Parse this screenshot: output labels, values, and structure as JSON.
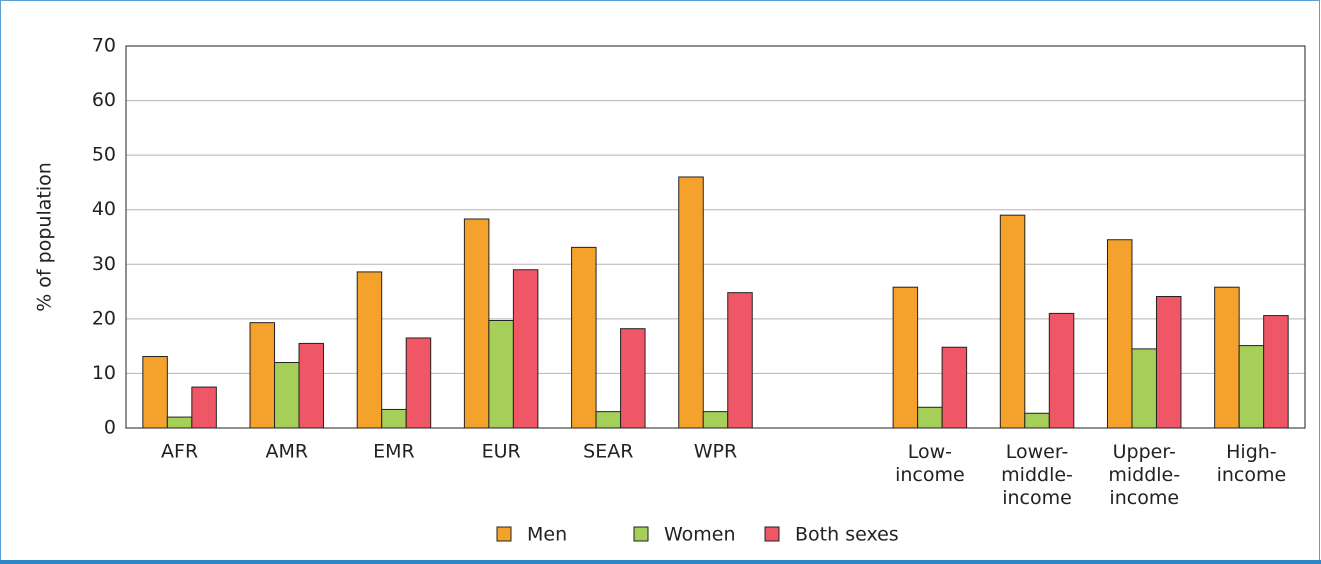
{
  "chart_data": {
    "type": "bar",
    "y_label": "% of population",
    "categories": [
      "AFR",
      "AMR",
      "EMR",
      "EUR",
      "SEAR",
      "WPR",
      null,
      "Low-income",
      "Lower-middle-income",
      "Upper-middle-income",
      "High-income"
    ],
    "series": [
      {
        "name": "Men",
        "color": "#f5a22d",
        "values": [
          13.1,
          19.3,
          28.6,
          38.3,
          33.1,
          46,
          null,
          25.8,
          39,
          34.5,
          25.8
        ]
      },
      {
        "name": "Women",
        "color": "#a6cf5a",
        "values": [
          2,
          12,
          3.4,
          19.7,
          3,
          3,
          null,
          3.8,
          2.7,
          14.5,
          15.1
        ]
      },
      {
        "name": "Both sexes",
        "color": "#ef5766",
        "values": [
          7.5,
          15.5,
          16.5,
          29,
          18.2,
          24.8,
          null,
          14.8,
          21,
          24.1,
          20.6
        ]
      }
    ],
    "ylim": [
      0,
      70
    ],
    "yticks": [
      0,
      10,
      20,
      30,
      40,
      50,
      60,
      70
    ],
    "grid": true,
    "legend": "bottom"
  }
}
